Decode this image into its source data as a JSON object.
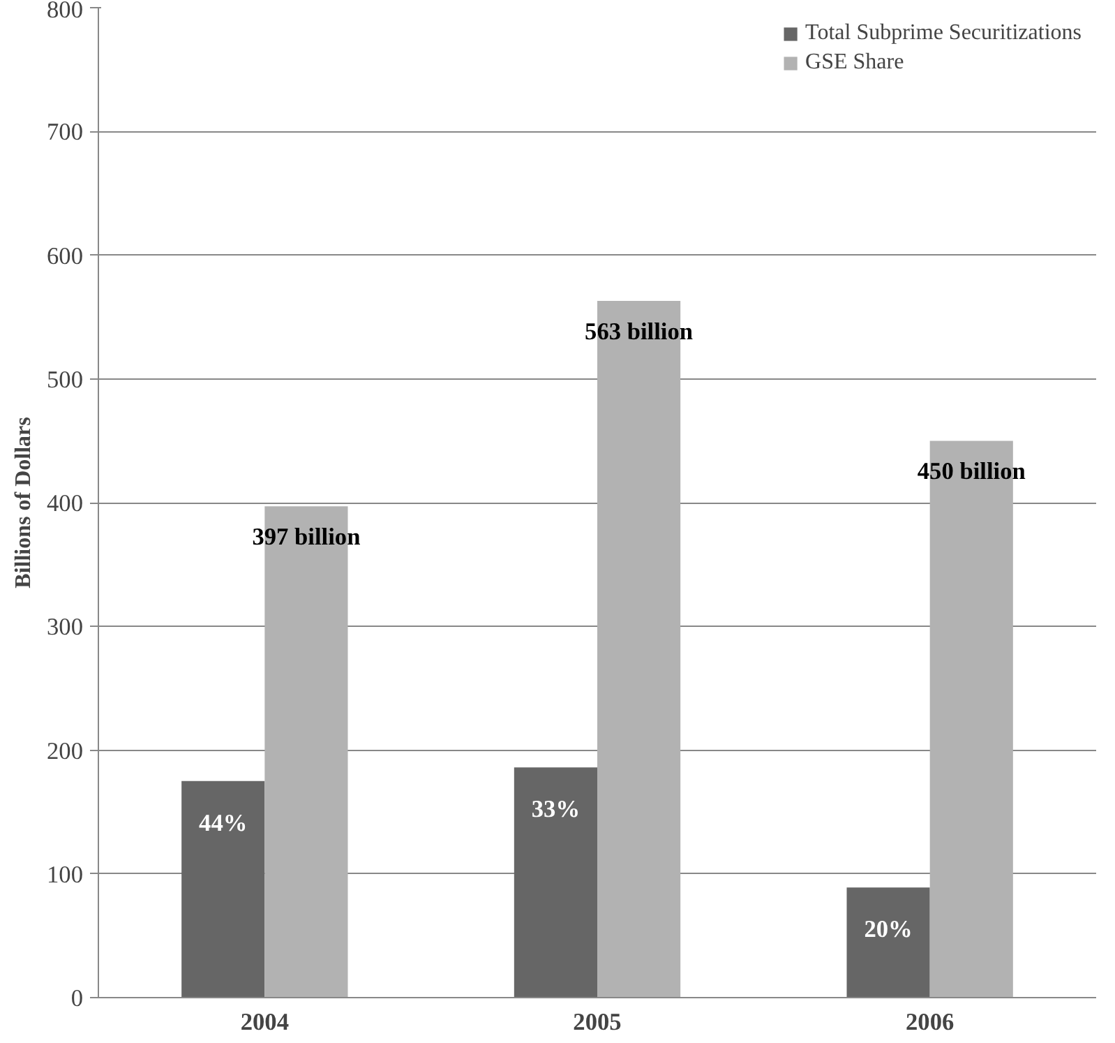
{
  "chart_data": {
    "type": "bar",
    "ylabel": "Billions of Dollars",
    "categories": [
      "2004",
      "2005",
      "2006"
    ],
    "ylim": [
      0,
      800
    ],
    "yticks": [
      0,
      100,
      200,
      300,
      400,
      500,
      600,
      700,
      800
    ],
    "grid": "y",
    "legend": "top right",
    "series": [
      {
        "name": "Total Subprime Securitizations",
        "color": "#666666",
        "values": [
          175,
          186,
          89
        ]
      },
      {
        "name": "GSE Share",
        "color": "#b2b2b2",
        "values": [
          397,
          563,
          450
        ],
        "value_labels": [
          "397 billion",
          "563 billion",
          "450 billion"
        ]
      }
    ],
    "annotations": [
      {
        "text": "44%",
        "x": "2004",
        "y": 175
      },
      {
        "text": "33%",
        "x": "2005",
        "y": 186
      },
      {
        "text": "20%",
        "x": "2006",
        "y": 89
      }
    ]
  }
}
